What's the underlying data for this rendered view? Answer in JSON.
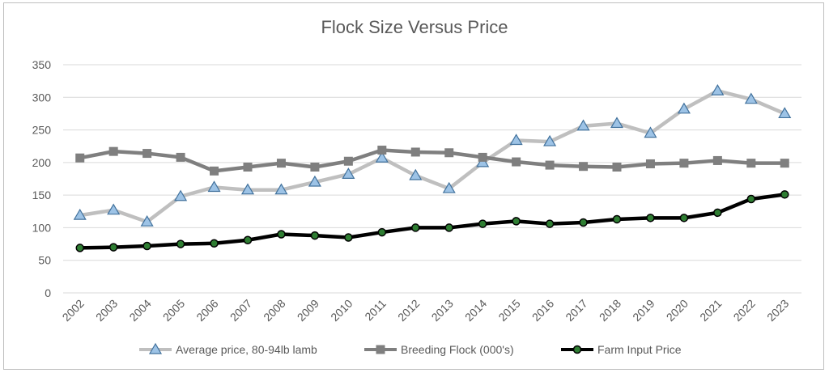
{
  "chart_data": {
    "type": "line",
    "title": "Flock Size Versus Price",
    "xlabel": "",
    "ylabel": "",
    "ylim": [
      0,
      350
    ],
    "yticks": [
      0,
      50,
      100,
      150,
      200,
      250,
      300,
      350
    ],
    "grid": true,
    "legend_position": "bottom",
    "categories": [
      "2002",
      "2003",
      "2004",
      "2005",
      "2006",
      "2007",
      "2008",
      "2009",
      "2010",
      "2011",
      "2012",
      "2013",
      "2014",
      "2015",
      "2016",
      "2017",
      "2018",
      "2019",
      "2020",
      "2021",
      "2022",
      "2023"
    ],
    "series": [
      {
        "name": "Average price, 80-94lb lamb",
        "color": "#bfbfbf",
        "marker": "triangle",
        "marker_fill": "#9dc3e6",
        "marker_stroke": "#41719c",
        "values": [
          119,
          127,
          109,
          148,
          162,
          158,
          158,
          170,
          182,
          207,
          180,
          160,
          200,
          234,
          232,
          256,
          260,
          245,
          282,
          310,
          297,
          275
        ]
      },
      {
        "name": "Breeding Flock (000's)",
        "color": "#7f7f7f",
        "marker": "square",
        "marker_fill": "#7f7f7f",
        "marker_stroke": "#7f7f7f",
        "values": [
          207,
          217,
          214,
          208,
          187,
          193,
          199,
          193,
          202,
          219,
          216,
          215,
          208,
          201,
          196,
          194,
          193,
          198,
          199,
          203,
          199,
          199
        ]
      },
      {
        "name": "Farm Input Price",
        "color": "#000000",
        "marker": "circle",
        "marker_fill": "#2e7d32",
        "marker_stroke": "#000000",
        "values": [
          69,
          70,
          72,
          75,
          76,
          81,
          90,
          88,
          85,
          93,
          100,
          100,
          106,
          110,
          106,
          108,
          113,
          115,
          115,
          123,
          144,
          151
        ]
      }
    ]
  }
}
